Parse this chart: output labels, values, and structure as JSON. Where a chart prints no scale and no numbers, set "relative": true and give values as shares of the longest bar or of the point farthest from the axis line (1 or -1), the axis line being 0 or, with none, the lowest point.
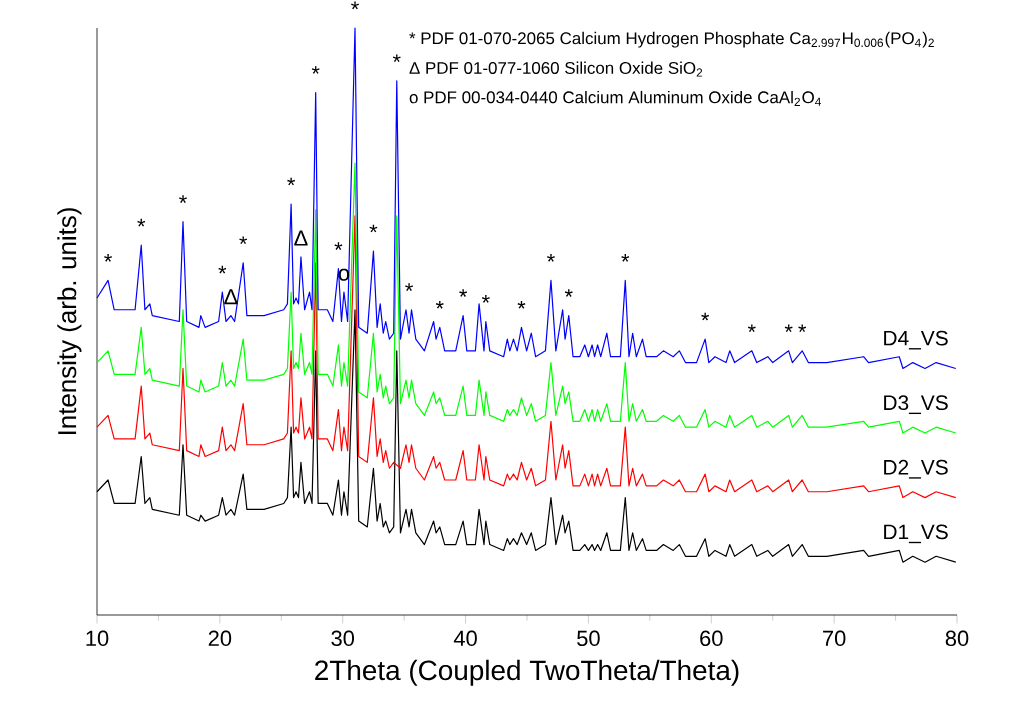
{
  "chart_data": {
    "type": "line",
    "relative": true,
    "xlabel": "2Theta (Coupled TwoTheta/Theta)",
    "ylabel": "Intensity (arb. units)",
    "xlim": [
      10,
      80
    ],
    "xticks": [
      10,
      20,
      30,
      40,
      50,
      60,
      70,
      80
    ],
    "x": [
      10.0,
      10.9,
      11.4,
      13.1,
      13.6,
      13.9,
      14.3,
      14.5,
      16.7,
      17.0,
      17.3,
      18.3,
      18.45,
      18.8,
      19.9,
      20.2,
      20.5,
      20.9,
      21.2,
      21.9,
      22.2,
      23.6,
      25.2,
      25.5,
      25.8,
      26.0,
      26.2,
      26.4,
      26.6,
      26.9,
      27.3,
      27.5,
      27.8,
      28.0,
      28.75,
      29.2,
      29.65,
      29.9,
      30.1,
      30.4,
      31.0,
      31.3,
      32.0,
      32.5,
      32.8,
      33.05,
      33.3,
      33.5,
      33.8,
      34.15,
      34.4,
      34.7,
      35.15,
      35.4,
      35.6,
      35.95,
      36.65,
      37.4,
      37.6,
      37.9,
      38.3,
      39.2,
      39.8,
      40.1,
      40.8,
      41.1,
      41.5,
      41.65,
      41.97,
      43.1,
      43.4,
      43.6,
      43.9,
      44.2,
      44.55,
      44.97,
      45.35,
      45.7,
      46.5,
      46.95,
      47.35,
      47.9,
      48.1,
      48.4,
      48.75,
      49.3,
      49.7,
      50.0,
      50.3,
      50.5,
      50.75,
      51.0,
      51.5,
      51.8,
      52.6,
      53.0,
      53.3,
      53.6,
      53.9,
      54.4,
      54.7,
      55.55,
      56.1,
      56.9,
      57.4,
      57.9,
      58.8,
      59.5,
      59.8,
      60.3,
      61.2,
      61.5,
      61.9,
      63.3,
      63.7,
      64.6,
      65.0,
      66.3,
      66.6,
      67.4,
      67.9,
      69.4,
      72.4,
      72.8,
      75.3,
      75.6,
      76.4,
      77.4,
      78.3,
      79.9
    ],
    "series": [
      {
        "name": "D1_VS",
        "color": "#000000",
        "values": [
          0.21,
          0.23,
          0.19,
          0.19,
          0.27,
          0.19,
          0.2,
          0.18,
          0.17,
          0.29,
          0.17,
          0.16,
          0.17,
          0.16,
          0.17,
          0.2,
          0.17,
          0.18,
          0.17,
          0.24,
          0.18,
          0.18,
          0.19,
          0.2,
          0.32,
          0.2,
          0.21,
          0.2,
          0.26,
          0.19,
          0.21,
          0.19,
          0.45,
          0.19,
          0.19,
          0.17,
          0.23,
          0.17,
          0.21,
          0.17,
          0.52,
          0.16,
          0.15,
          0.25,
          0.16,
          0.19,
          0.15,
          0.16,
          0.14,
          0.15,
          0.45,
          0.14,
          0.18,
          0.15,
          0.18,
          0.14,
          0.12,
          0.16,
          0.14,
          0.15,
          0.12,
          0.12,
          0.16,
          0.12,
          0.12,
          0.18,
          0.12,
          0.16,
          0.12,
          0.11,
          0.13,
          0.12,
          0.13,
          0.12,
          0.14,
          0.12,
          0.14,
          0.11,
          0.12,
          0.2,
          0.12,
          0.17,
          0.14,
          0.16,
          0.11,
          0.11,
          0.12,
          0.11,
          0.12,
          0.11,
          0.12,
          0.11,
          0.14,
          0.11,
          0.11,
          0.2,
          0.11,
          0.14,
          0.11,
          0.13,
          0.11,
          0.11,
          0.12,
          0.11,
          0.12,
          0.1,
          0.1,
          0.13,
          0.1,
          0.11,
          0.1,
          0.12,
          0.1,
          0.12,
          0.1,
          0.11,
          0.1,
          0.12,
          0.1,
          0.12,
          0.1,
          0.1,
          0.11,
          0.1,
          0.11,
          0.09,
          0.1,
          0.09,
          0.1,
          0.09
        ]
      },
      {
        "name": "D2_VS",
        "color": "#ff0000",
        "values": [
          0.32,
          0.34,
          0.3,
          0.3,
          0.39,
          0.3,
          0.31,
          0.29,
          0.28,
          0.42,
          0.28,
          0.27,
          0.29,
          0.27,
          0.28,
          0.32,
          0.28,
          0.29,
          0.28,
          0.36,
          0.29,
          0.29,
          0.3,
          0.31,
          0.45,
          0.31,
          0.32,
          0.31,
          0.37,
          0.3,
          0.32,
          0.3,
          0.6,
          0.3,
          0.3,
          0.28,
          0.35,
          0.28,
          0.32,
          0.28,
          0.68,
          0.27,
          0.26,
          0.37,
          0.27,
          0.3,
          0.26,
          0.28,
          0.25,
          0.26,
          null,
          0.25,
          0.29,
          0.26,
          0.29,
          0.25,
          0.23,
          0.27,
          0.25,
          0.26,
          0.23,
          0.23,
          0.28,
          0.23,
          0.23,
          0.29,
          0.23,
          0.27,
          0.23,
          0.22,
          0.24,
          0.23,
          0.24,
          0.23,
          0.26,
          0.23,
          0.25,
          0.22,
          0.23,
          0.33,
          0.23,
          0.29,
          0.25,
          0.28,
          0.22,
          0.22,
          0.24,
          0.22,
          0.24,
          0.22,
          0.24,
          0.22,
          0.25,
          0.22,
          0.22,
          0.32,
          0.22,
          0.25,
          0.22,
          0.24,
          0.22,
          0.22,
          0.23,
          0.22,
          0.23,
          0.21,
          0.21,
          0.24,
          0.21,
          0.22,
          0.21,
          0.23,
          0.21,
          0.23,
          0.21,
          0.22,
          0.21,
          0.23,
          0.21,
          0.23,
          0.21,
          0.21,
          0.22,
          0.21,
          0.22,
          0.2,
          0.21,
          0.2,
          0.21,
          0.2
        ]
      },
      {
        "name": "D3_VS",
        "color": "#00ff00",
        "values": [
          0.43,
          0.45,
          0.41,
          0.41,
          0.49,
          0.41,
          0.42,
          0.4,
          0.39,
          0.52,
          0.39,
          0.38,
          0.4,
          0.38,
          0.39,
          0.43,
          0.39,
          0.4,
          0.39,
          0.47,
          0.4,
          0.4,
          0.41,
          0.42,
          0.55,
          0.42,
          0.43,
          0.42,
          0.48,
          0.41,
          0.43,
          0.41,
          0.69,
          0.41,
          0.41,
          0.39,
          0.46,
          0.39,
          0.43,
          0.39,
          0.77,
          0.38,
          0.37,
          0.48,
          0.38,
          0.41,
          0.37,
          0.39,
          0.36,
          0.37,
          0.68,
          0.36,
          0.4,
          0.37,
          0.4,
          0.36,
          0.34,
          0.38,
          0.36,
          0.37,
          0.34,
          0.34,
          0.39,
          0.34,
          0.34,
          0.4,
          0.34,
          0.38,
          0.34,
          0.33,
          0.35,
          0.34,
          0.35,
          0.34,
          0.37,
          0.34,
          0.36,
          0.33,
          0.34,
          0.43,
          0.34,
          0.39,
          0.36,
          0.38,
          0.33,
          0.33,
          0.35,
          0.33,
          0.35,
          0.33,
          0.35,
          0.33,
          0.36,
          0.33,
          0.33,
          0.43,
          0.33,
          0.36,
          0.33,
          0.35,
          0.33,
          0.33,
          0.34,
          0.33,
          0.34,
          0.32,
          0.32,
          0.35,
          0.32,
          0.33,
          0.32,
          0.34,
          0.32,
          0.34,
          0.32,
          0.33,
          0.32,
          0.34,
          0.32,
          0.34,
          0.32,
          0.32,
          0.33,
          0.32,
          0.33,
          0.31,
          0.32,
          0.31,
          0.32,
          0.31
        ]
      },
      {
        "name": "D4_VS",
        "color": "#0000ff",
        "values": [
          0.54,
          0.57,
          0.52,
          0.52,
          0.63,
          0.52,
          0.53,
          0.51,
          0.5,
          0.67,
          0.5,
          0.49,
          0.51,
          0.49,
          0.5,
          0.55,
          0.5,
          0.51,
          0.5,
          0.6,
          0.51,
          0.51,
          0.52,
          0.53,
          0.7,
          0.53,
          0.54,
          0.53,
          0.61,
          0.52,
          0.55,
          0.52,
          0.89,
          0.52,
          0.52,
          0.5,
          0.59,
          0.5,
          0.55,
          0.5,
          1.0,
          0.49,
          0.48,
          0.62,
          0.49,
          0.53,
          0.48,
          0.5,
          0.47,
          0.48,
          0.91,
          0.47,
          0.52,
          0.48,
          0.52,
          0.47,
          0.45,
          0.5,
          0.47,
          0.49,
          0.45,
          0.45,
          0.51,
          0.45,
          0.45,
          0.53,
          0.45,
          0.5,
          0.45,
          0.44,
          0.47,
          0.45,
          0.47,
          0.45,
          0.49,
          0.45,
          0.48,
          0.44,
          0.45,
          0.57,
          0.45,
          0.52,
          0.47,
          0.51,
          0.44,
          0.44,
          0.46,
          0.44,
          0.46,
          0.44,
          0.46,
          0.44,
          0.48,
          0.44,
          0.44,
          0.57,
          0.44,
          0.48,
          0.44,
          0.47,
          0.44,
          0.44,
          0.45,
          0.44,
          0.45,
          0.43,
          0.43,
          0.47,
          0.43,
          0.44,
          0.43,
          0.45,
          0.43,
          0.45,
          0.43,
          0.44,
          0.43,
          0.45,
          0.43,
          0.45,
          0.43,
          0.43,
          0.44,
          0.43,
          0.44,
          0.42,
          0.43,
          0.42,
          0.43,
          0.42
        ]
      }
    ],
    "annotations": [
      "* PDF 01-070-2065 Calcium Hydrogen Phosphate Ca$_{2.997}$H$_{0.006}$(PO$_{4}$)$_{2}$",
      "Δ PDF 01-077-1060 Silicon Oxide SiO$_{2}$",
      "o PDF 00-034-0440 Calcium Aluminum Oxide CaAl$_{2}$O$_{4}$",
      {
        "text": "*",
        "x": 10.9,
        "y": 0.57
      },
      {
        "text": "*",
        "x": 13.6,
        "y": 0.63
      },
      {
        "text": "*",
        "x": 17.0,
        "y": 0.67
      },
      {
        "text": "*",
        "x": 20.2,
        "y": 0.55
      },
      {
        "text": "Δ",
        "x": 20.9,
        "y": 0.51
      },
      {
        "text": "*",
        "x": 21.9,
        "y": 0.6
      },
      {
        "text": "*",
        "x": 25.8,
        "y": 0.7
      },
      {
        "text": "Δ",
        "x": 26.6,
        "y": 0.61
      },
      {
        "text": "*",
        "x": 27.8,
        "y": 0.89
      },
      {
        "text": "*",
        "x": 29.65,
        "y": 0.59
      },
      {
        "text": "o",
        "x": 30.1,
        "y": 0.55
      },
      {
        "text": "*",
        "x": 31.0,
        "y": 1.0
      },
      {
        "text": "*",
        "x": 32.5,
        "y": 0.62
      },
      {
        "text": "*",
        "x": 34.4,
        "y": 0.91
      },
      {
        "text": "*",
        "x": 35.4,
        "y": 0.52
      },
      {
        "text": "*",
        "x": 37.9,
        "y": 0.49
      },
      {
        "text": "*",
        "x": 39.8,
        "y": 0.51
      },
      {
        "text": "*",
        "x": 41.65,
        "y": 0.5
      },
      {
        "text": "*",
        "x": 44.55,
        "y": 0.49
      },
      {
        "text": "*",
        "x": 46.95,
        "y": 0.57
      },
      {
        "text": "*",
        "x": 48.4,
        "y": 0.51
      },
      {
        "text": "*",
        "x": 53.0,
        "y": 0.57
      },
      {
        "text": "*",
        "x": 59.5,
        "y": 0.47
      },
      {
        "text": "*",
        "x": 63.3,
        "y": 0.45
      },
      {
        "text": "*",
        "x": 66.3,
        "y": 0.45
      },
      {
        "text": "*",
        "x": 67.4,
        "y": 0.45
      }
    ]
  }
}
